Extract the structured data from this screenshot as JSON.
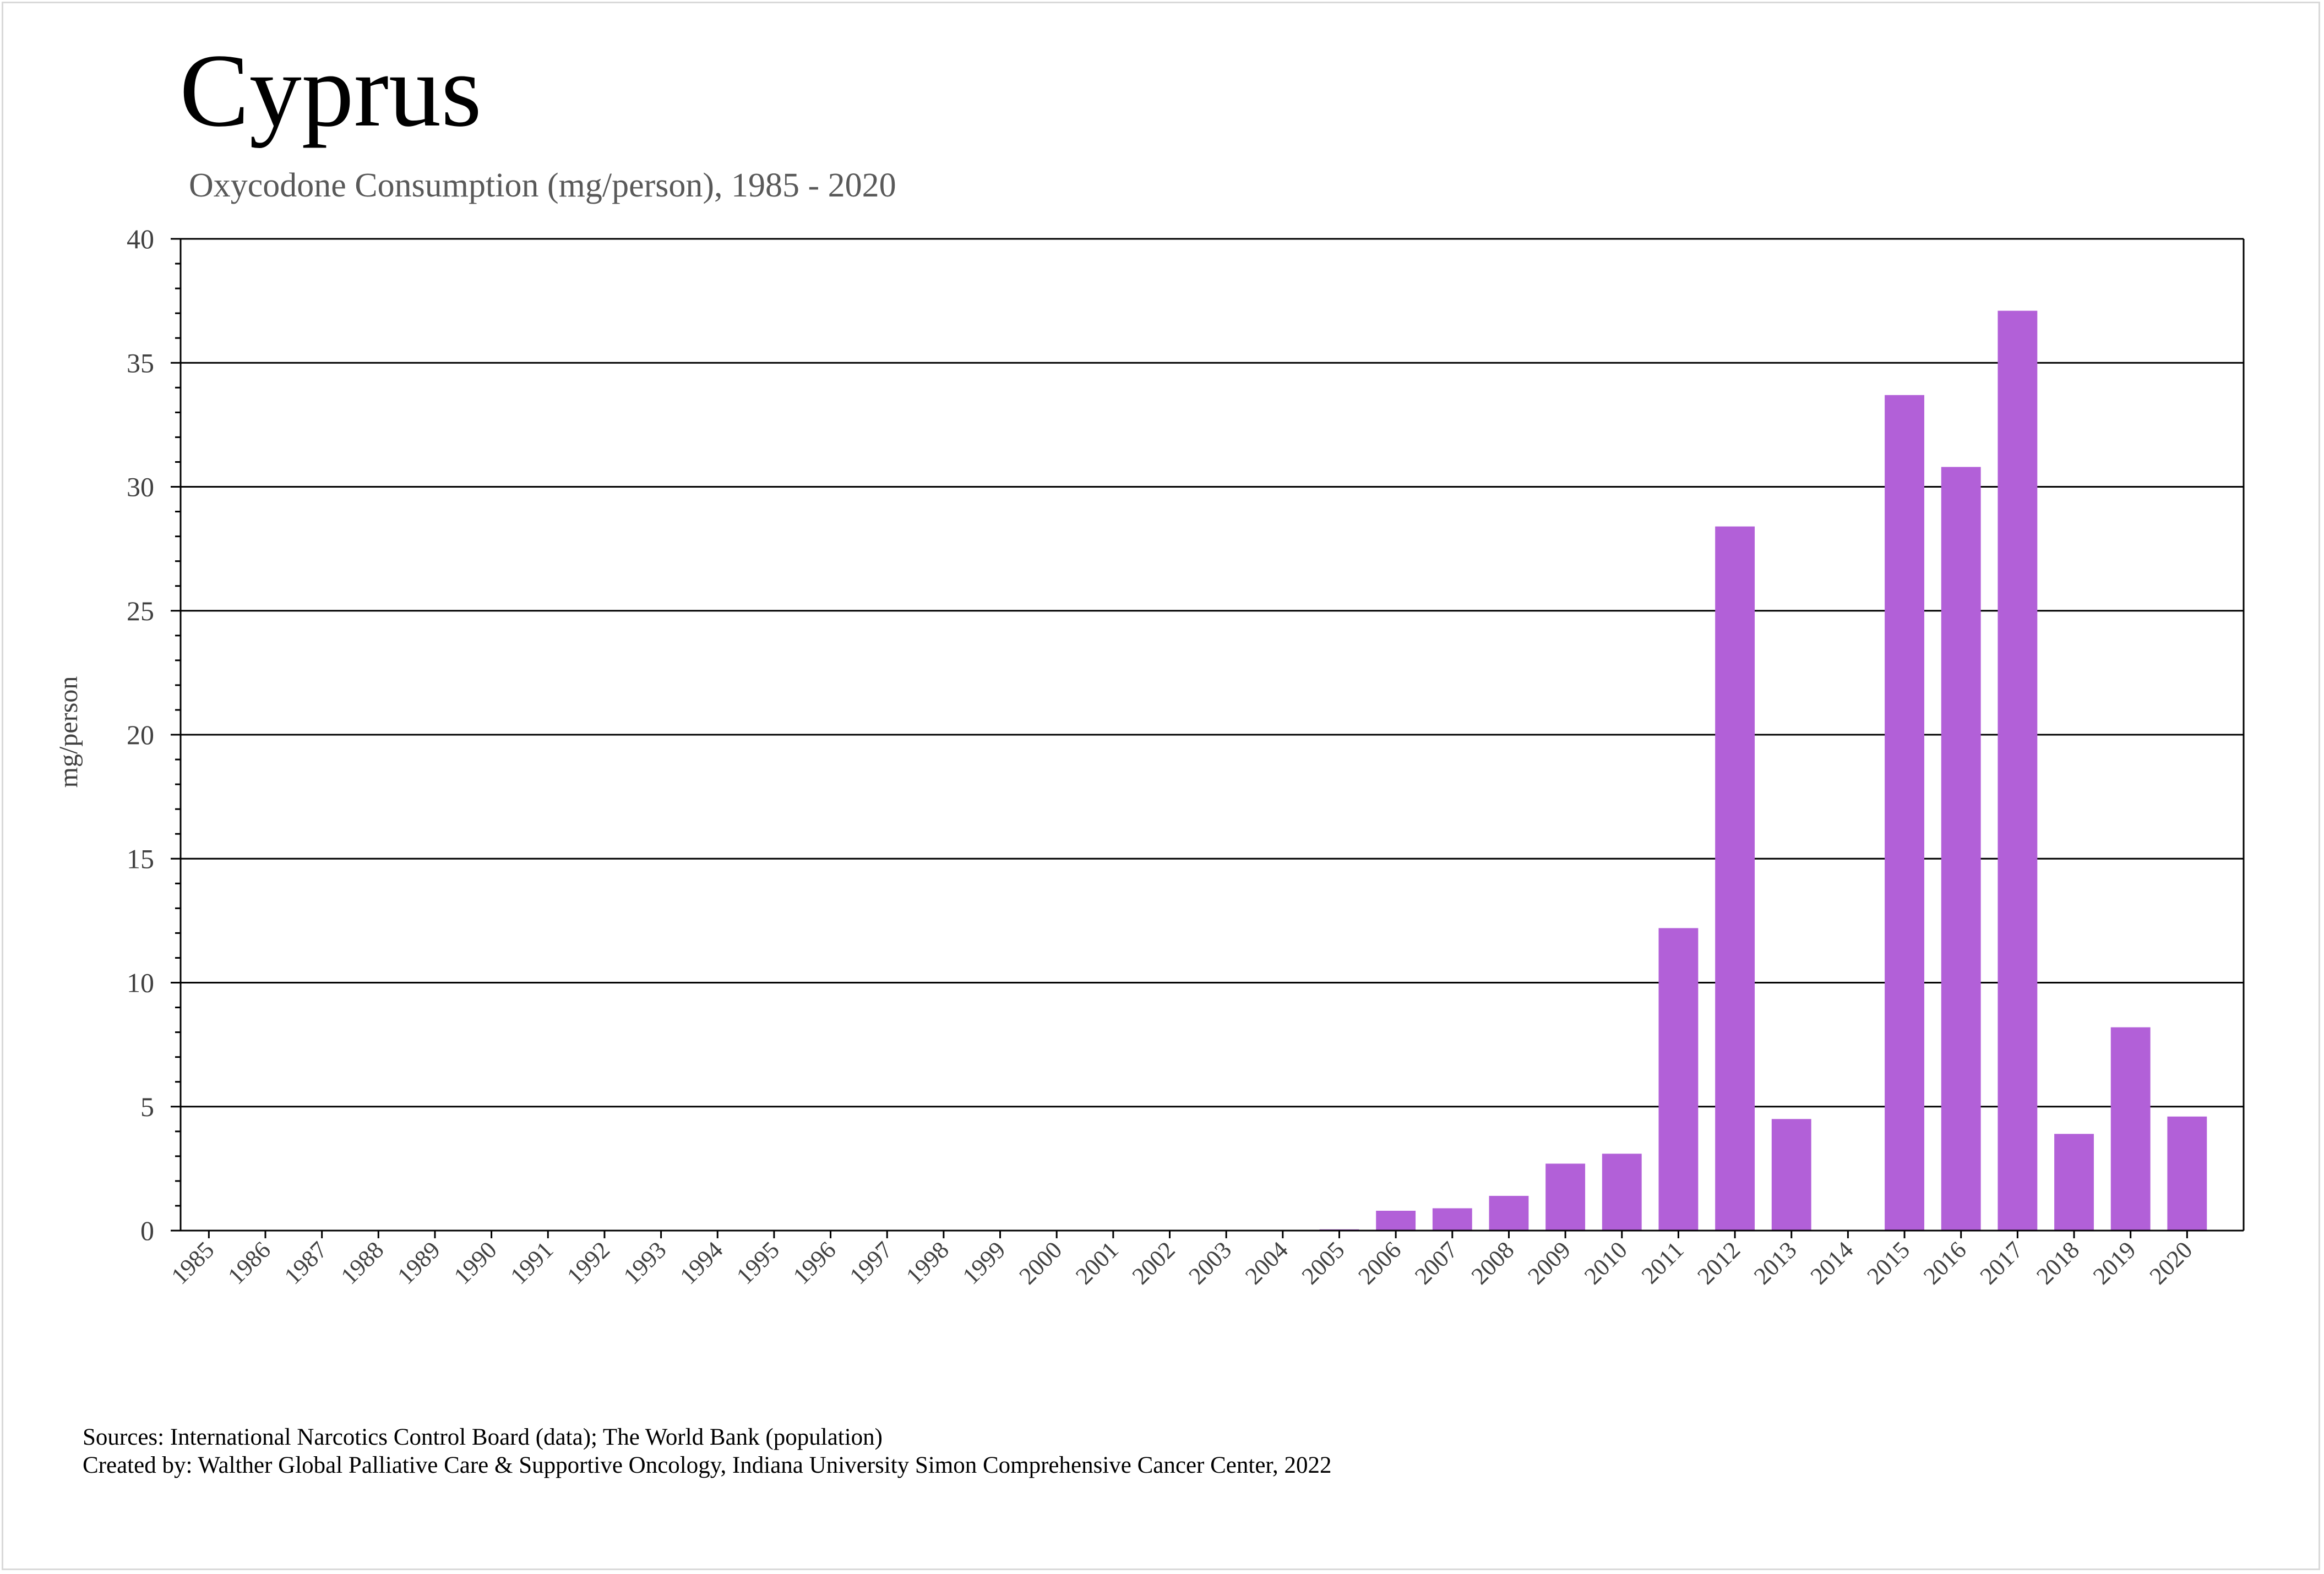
{
  "title": "Cyprus",
  "subtitle": "Oxycodone Consumption (mg/person), 1985 - 2020",
  "footer": {
    "sources": "Sources: International Narcotics Control Board (data); The World Bank (population)",
    "created_by": "Created by: Walther Global Palliative Care & Supportive Oncology, Indiana University Simon Comprehensive Cancer Center, 2022"
  },
  "colors": {
    "bar": "#b260d8",
    "axis": "#000000",
    "grid": "#000000",
    "tick_text": "#404040"
  },
  "chart_data": {
    "type": "bar",
    "title": "Cyprus",
    "subtitle": "Oxycodone Consumption (mg/person), 1985 - 2020",
    "xlabel": "",
    "ylabel": "mg/person",
    "ylim": [
      0,
      40
    ],
    "yticks": [
      "0",
      "5",
      "10",
      "15",
      "20",
      "25",
      "30",
      "35",
      "40"
    ],
    "grid": true,
    "legend": "none",
    "categories": [
      "1985",
      "1986",
      "1987",
      "1988",
      "1989",
      "1990",
      "1991",
      "1992",
      "1993",
      "1994",
      "1995",
      "1996",
      "1997",
      "1998",
      "1999",
      "2000",
      "2001",
      "2002",
      "2003",
      "2004",
      "2005",
      "2006",
      "2007",
      "2008",
      "2009",
      "2010",
      "2011",
      "2012",
      "2013",
      "2014",
      "2015",
      "2016",
      "2017",
      "2018",
      "2019",
      "2020"
    ],
    "values": [
      0,
      0,
      0,
      0,
      0,
      0,
      0,
      0,
      0,
      0,
      0,
      0,
      0,
      0,
      0,
      0,
      0,
      0,
      0,
      0,
      0.05,
      0.8,
      0.9,
      1.4,
      2.7,
      3.1,
      12.2,
      28.4,
      4.5,
      0,
      33.7,
      30.8,
      37.1,
      3.9,
      8.2,
      4.6
    ]
  }
}
